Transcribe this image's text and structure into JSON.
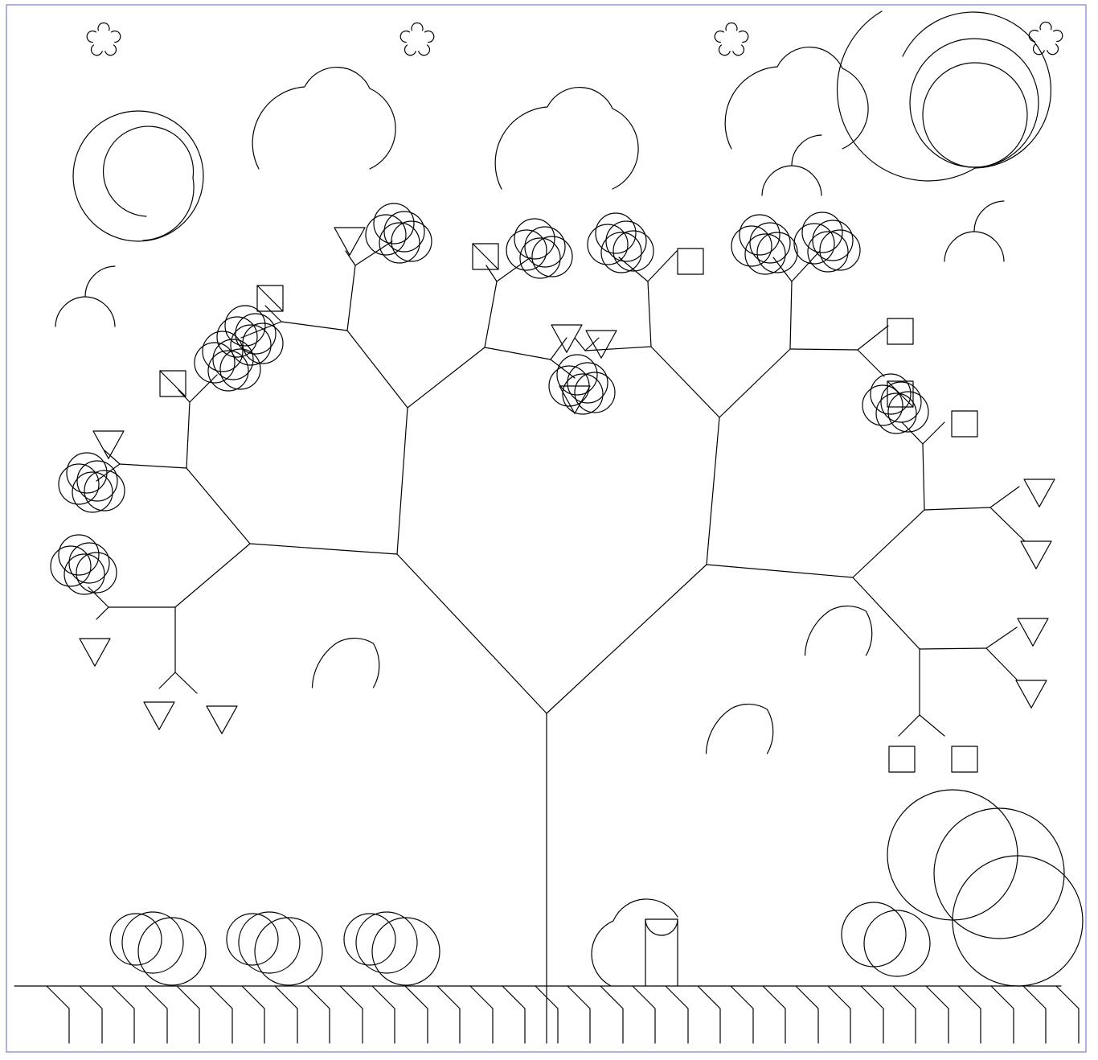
{
  "colors": {
    "background": "#ffffff",
    "frame": "#7b7fd6",
    "ink": "#000000"
  },
  "scene": {
    "icons": [
      "tree-icon",
      "flower-icon",
      "cloud-icon",
      "moon-icon",
      "sun-icon",
      "bush-icon",
      "fence-icon",
      "arch-icon"
    ]
  }
}
